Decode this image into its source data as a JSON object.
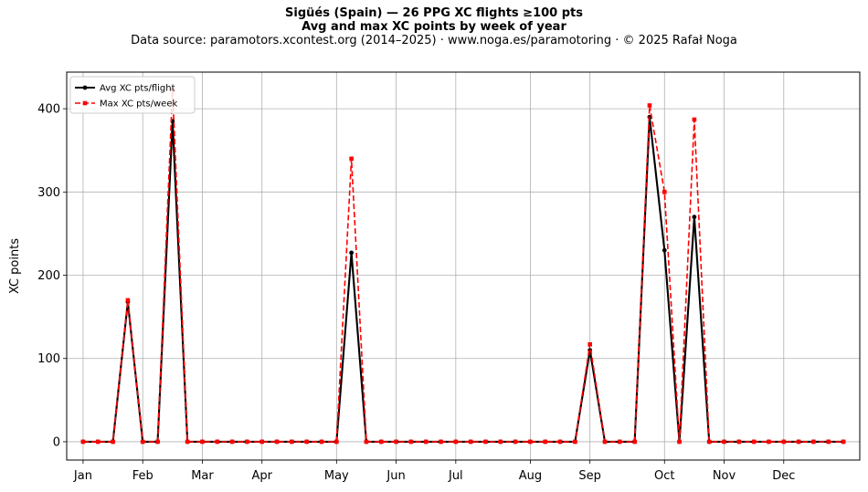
{
  "chart_data": {
    "type": "line",
    "title": "Sigüés (Spain)  —  26 PPG XC flights ≥100 pts",
    "subtitle": "Avg and max XC points by week of year",
    "source_note": "Data source: paramotors.xcontest.org (2014–2025)  ·  www.noga.es/paramotoring  ·  © 2025 Rafał Noga",
    "ylabel": "XC points",
    "xlabel": "",
    "ylim": [
      -22,
      444
    ],
    "yticks": [
      0,
      100,
      200,
      300,
      400
    ],
    "xlim": [
      -1.1,
      52.1
    ],
    "month_ticks": [
      {
        "week": 0,
        "label": "Jan"
      },
      {
        "week": 4,
        "label": "Feb"
      },
      {
        "week": 8,
        "label": "Mar"
      },
      {
        "week": 12,
        "label": "Apr"
      },
      {
        "week": 17,
        "label": "May"
      },
      {
        "week": 21,
        "label": "Jun"
      },
      {
        "week": 25,
        "label": "Jul"
      },
      {
        "week": 30,
        "label": "Aug"
      },
      {
        "week": 34,
        "label": "Sep"
      },
      {
        "week": 39,
        "label": "Oct"
      },
      {
        "week": 43,
        "label": "Nov"
      },
      {
        "week": 47,
        "label": "Dec"
      }
    ],
    "grid": true,
    "legend_position": "top-left",
    "x": [
      0,
      1,
      2,
      3,
      4,
      5,
      6,
      7,
      8,
      9,
      10,
      11,
      12,
      13,
      14,
      15,
      16,
      17,
      18,
      19,
      20,
      21,
      22,
      23,
      24,
      25,
      26,
      27,
      28,
      29,
      30,
      31,
      32,
      33,
      34,
      35,
      36,
      37,
      38,
      39,
      40,
      41,
      42,
      43,
      44,
      45,
      46,
      47,
      48,
      49,
      50,
      51
    ],
    "series": [
      {
        "name": "Avg XC pts/flight",
        "color": "#000000",
        "style": "solid-circle",
        "values": [
          0,
          0,
          0,
          168,
          0,
          0,
          385,
          0,
          0,
          0,
          0,
          0,
          0,
          0,
          0,
          0,
          0,
          0,
          227,
          0,
          0,
          0,
          0,
          0,
          0,
          0,
          0,
          0,
          0,
          0,
          0,
          0,
          0,
          0,
          110,
          0,
          0,
          0,
          390,
          230,
          0,
          270,
          0,
          0,
          0,
          0,
          0,
          0,
          0,
          0,
          0,
          0
        ]
      },
      {
        "name": "Max XC pts/week",
        "color": "#ff0000",
        "style": "dashed-square",
        "values": [
          0,
          0,
          0,
          170,
          0,
          0,
          423,
          0,
          0,
          0,
          0,
          0,
          0,
          0,
          0,
          0,
          0,
          0,
          340,
          0,
          0,
          0,
          0,
          0,
          0,
          0,
          0,
          0,
          0,
          0,
          0,
          0,
          0,
          0,
          117,
          0,
          0,
          0,
          404,
          300,
          0,
          387,
          0,
          0,
          0,
          0,
          0,
          0,
          0,
          0,
          0,
          0
        ]
      }
    ]
  }
}
